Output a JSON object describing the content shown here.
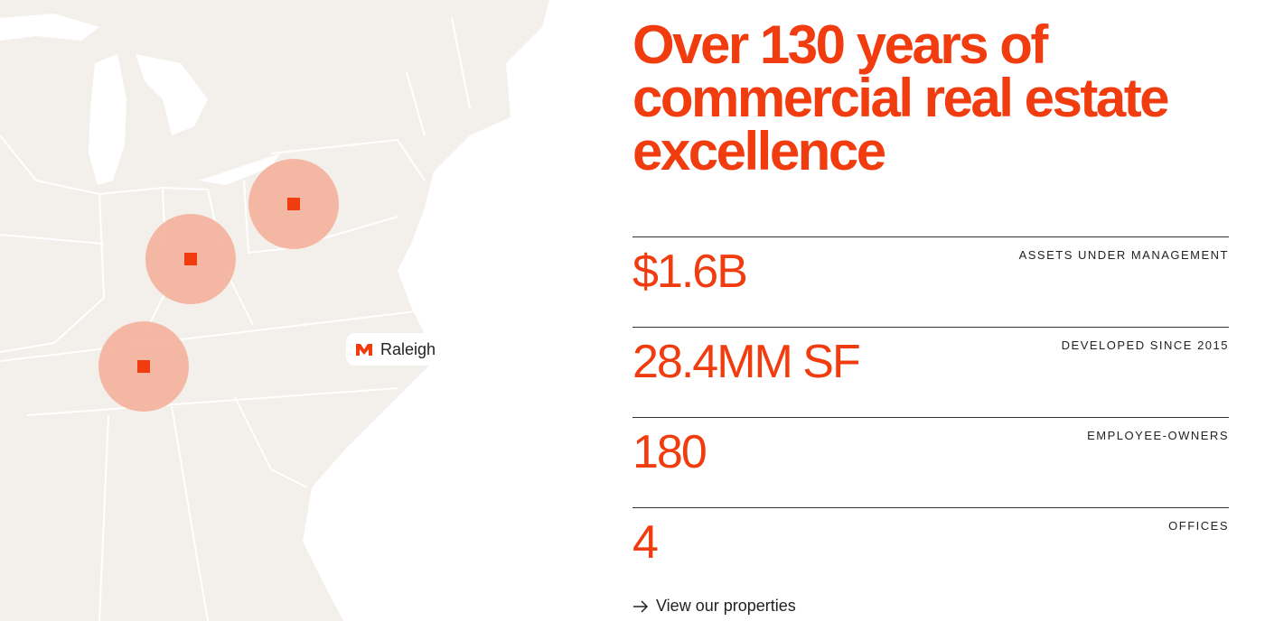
{
  "map": {
    "marker_label": "Raleigh"
  },
  "headline": "Over 130 years of commercial real estate excellence",
  "stats": [
    {
      "value": "$1.6B",
      "label": "ASSETS UNDER MANAGEMENT"
    },
    {
      "value": "28.4MM SF",
      "label": "DEVELOPED SINCE 2015"
    },
    {
      "value": "180",
      "label": "EMPLOYEE-OWNERS"
    },
    {
      "value": "4",
      "label": "OFFICES"
    }
  ],
  "link": "View our properties"
}
